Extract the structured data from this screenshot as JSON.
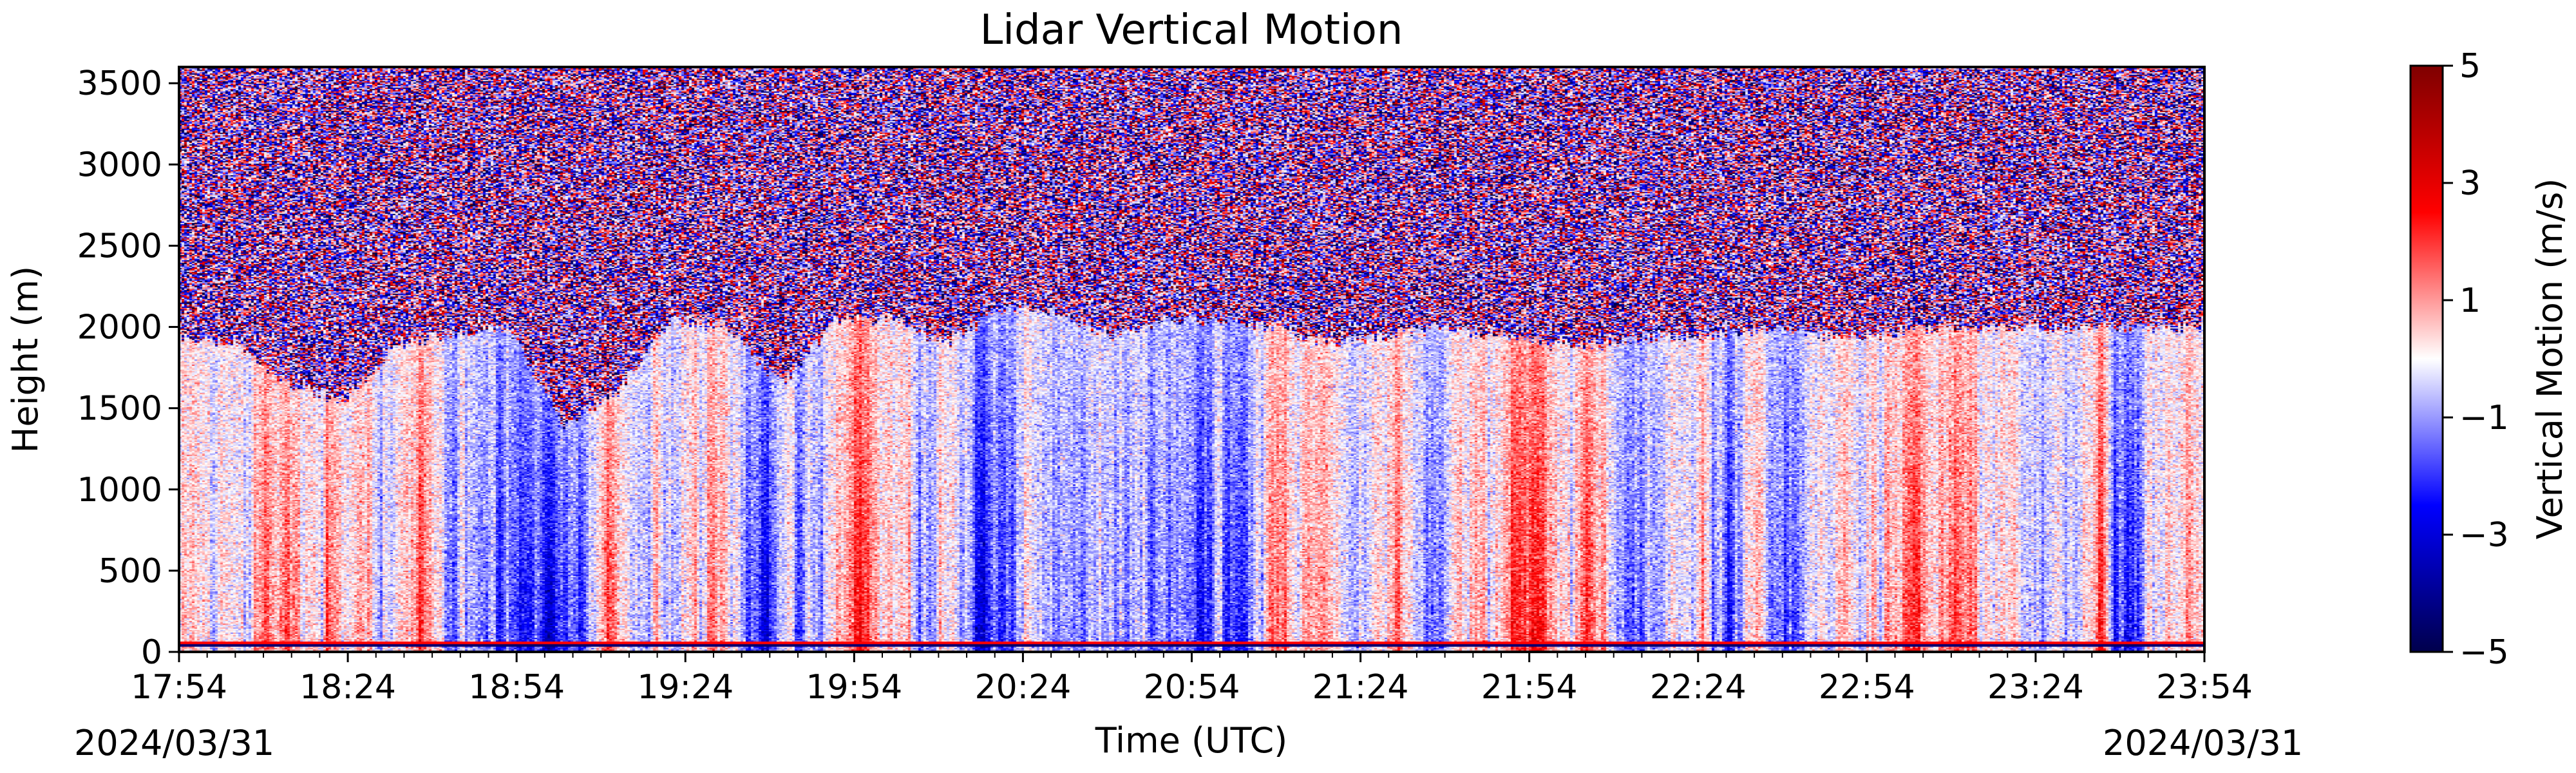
{
  "chart_data": {
    "type": "heatmap",
    "title": "Lidar Vertical Motion",
    "xlabel": "Time (UTC)",
    "ylabel": "Height (m)",
    "x_tick_labels": [
      "17:54",
      "18:24",
      "18:54",
      "19:24",
      "19:54",
      "20:24",
      "20:54",
      "21:24",
      "21:54",
      "22:24",
      "22:54",
      "23:24",
      "23:54"
    ],
    "x_range": [
      "17:54",
      "23:54"
    ],
    "date_start": "2024/03/31",
    "date_end": "2024/03/31",
    "ylim": [
      0,
      3600
    ],
    "y_ticks": [
      0,
      500,
      1000,
      1500,
      2000,
      2500,
      3000,
      3500
    ],
    "colorbar": {
      "label": "Vertical Motion (m/s)",
      "range": [
        -5,
        5
      ],
      "tick_labels": [
        "5",
        "3",
        "1",
        "−1",
        "−3",
        "−5"
      ],
      "tick_values": [
        5,
        3,
        1,
        -1,
        -3,
        -5
      ],
      "colormap": "seismic",
      "colors": [
        "#00004c",
        "#0000ff",
        "#ffffff",
        "#ff0000",
        "#7f0000"
      ]
    },
    "boundary_layer_height_m": [
      1930,
      1900,
      1650,
      1550,
      1900,
      1950,
      2000,
      1400,
      1600,
      2050,
      2000,
      1650,
      2050,
      2050,
      1900,
      2100,
      2100,
      1950,
      2050,
      2050,
      2000,
      1900,
      1950,
      2000,
      1950,
      1900,
      1900,
      1950,
      1950,
      2000,
      1950,
      1950,
      2000,
      2000,
      2000,
      2000,
      2000,
      2000
    ],
    "surface_line_height_m": 50,
    "grid": false,
    "legend": "colorbar-right"
  }
}
